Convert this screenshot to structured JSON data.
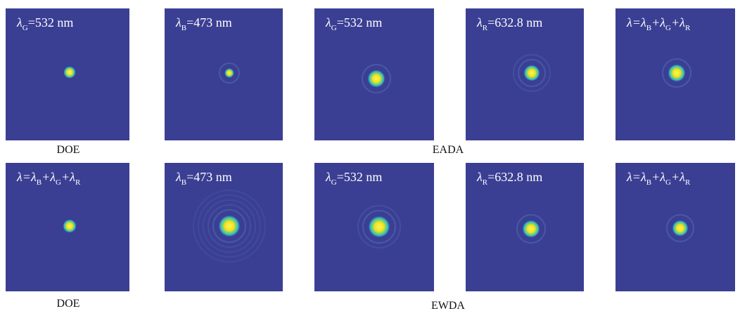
{
  "panels": [
    {
      "label": [
        "λ",
        "G",
        "=532 nm"
      ]
    },
    {
      "label": [
        "λ",
        "B",
        "=473 nm"
      ]
    },
    {
      "label": [
        "λ",
        "G",
        "=532 nm"
      ]
    },
    {
      "label": [
        "λ",
        "R",
        "=632.8 nm"
      ]
    },
    {
      "label": [
        "λ=λ",
        "B",
        "+λ",
        "G",
        "+λ",
        "R"
      ]
    },
    {
      "label": [
        "λ=λ",
        "B",
        "+λ",
        "G",
        "+λ",
        "R"
      ]
    },
    {
      "label": [
        "λ",
        "B",
        "=473 nm"
      ]
    },
    {
      "label": [
        "λ",
        "G",
        "=532 nm"
      ]
    },
    {
      "label": [
        "λ",
        "R",
        "=632.8 nm"
      ]
    },
    {
      "label": [
        "λ=λ",
        "B",
        "+λ",
        "G",
        "+λ",
        "R"
      ]
    }
  ],
  "captions": [
    "DOE",
    "EADA",
    "DOE",
    "EWDA"
  ]
}
